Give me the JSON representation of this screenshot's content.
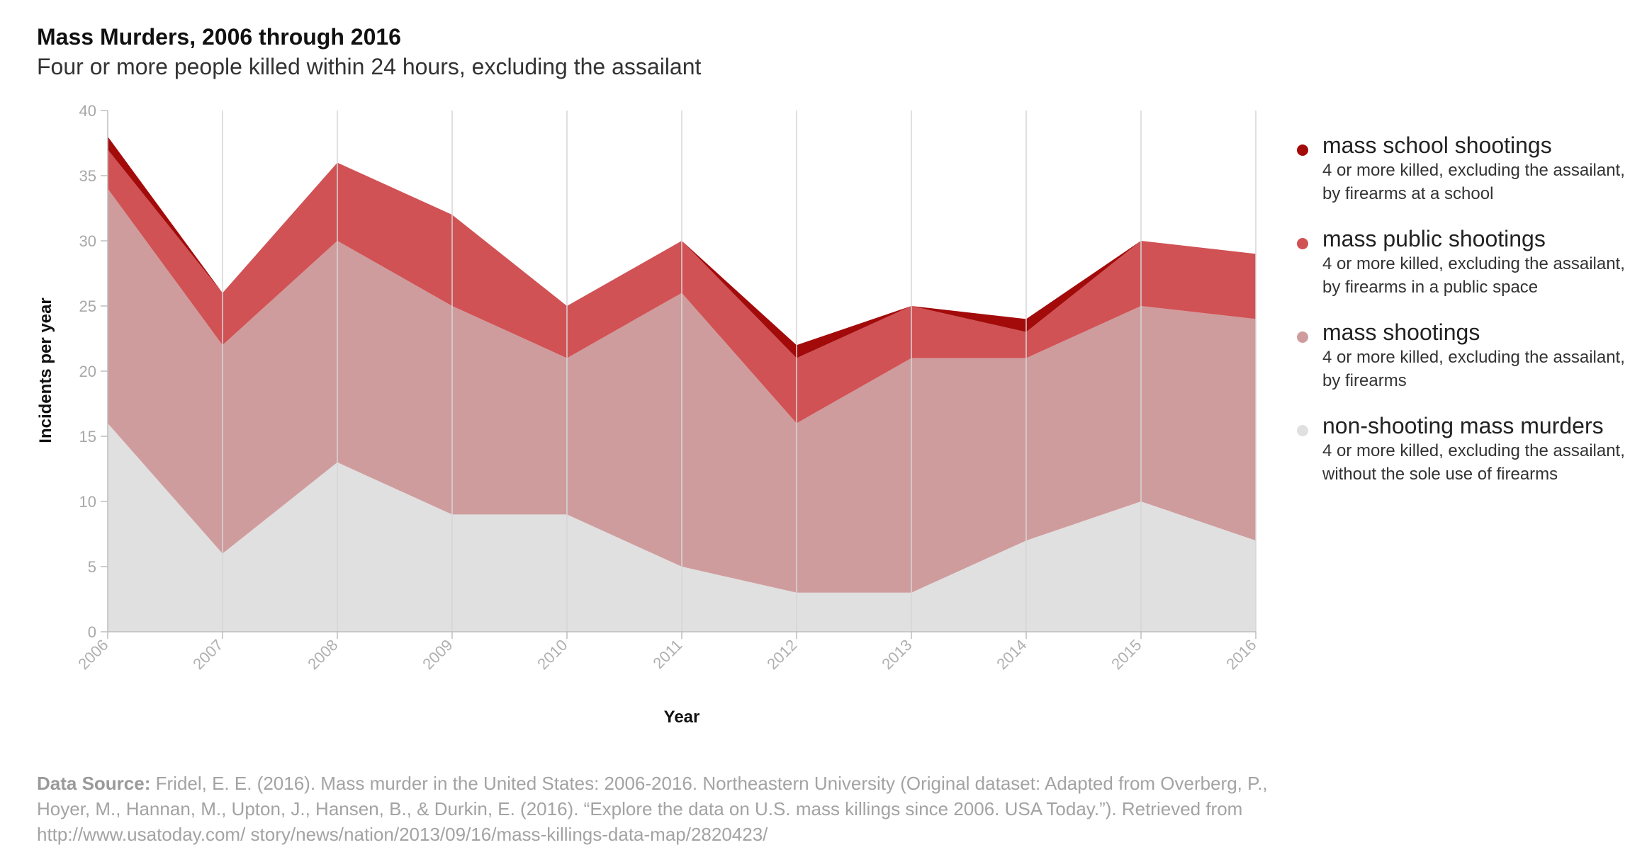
{
  "chart_data": {
    "type": "area",
    "stacked": true,
    "title": "Mass Murders, 2006 through 2016",
    "subtitle": "Four or more people killed within 24 hours, excluding the assailant",
    "xlabel": "Year",
    "ylabel": "Incidents per year",
    "ylim": [
      0,
      40
    ],
    "yticks": [
      0,
      5,
      10,
      15,
      20,
      25,
      30,
      35,
      40
    ],
    "categories": [
      "2006",
      "2007",
      "2008",
      "2009",
      "2010",
      "2011",
      "2012",
      "2013",
      "2014",
      "2015",
      "2016"
    ],
    "series": [
      {
        "name": "non-shooting mass murders",
        "description": "4 or more killed, excluding the assailant, without the sole use of firearms",
        "color": "#e0e0e0",
        "values": [
          16,
          6,
          13,
          9,
          9,
          5,
          3,
          3,
          7,
          10,
          7
        ]
      },
      {
        "name": "mass shootings",
        "description": "4 or more killed, excluding the assailant, by firearms",
        "color": "#cf9c9d",
        "values": [
          18,
          16,
          17,
          16,
          12,
          21,
          13,
          18,
          14,
          15,
          17
        ]
      },
      {
        "name": "mass public shootings",
        "description": "4 or more killed, excluding the assailant, by firearms in a public space",
        "color": "#d05255",
        "values": [
          3,
          4,
          6,
          7,
          4,
          4,
          5,
          4,
          2,
          5,
          5
        ]
      },
      {
        "name": "mass school shootings",
        "description": "4 or more killed, excluding the assailant, by firearms at a school",
        "color": "#a30b0b",
        "values": [
          1,
          0,
          0,
          0,
          0,
          0,
          1,
          0,
          1,
          0,
          0
        ]
      }
    ],
    "legend_order": [
      "mass school shootings",
      "mass public shootings",
      "mass shootings",
      "non-shooting mass murders"
    ],
    "legend_position": "right",
    "grid": "vertical"
  },
  "source": {
    "label": "Data Source:",
    "text": "Fridel, E. E. (2016). Mass murder in the United States: 2006-2016. Northeastern University (Original dataset: Adapted from Overberg, P., Hoyer, M., Hannan, M., Upton, J., Hansen, B., & Durkin, E. (2016). “Explore the data on U.S. mass killings since 2006. USA Today.”). Retrieved from http://www.usatoday.com/ story/news/nation/2013/09/16/mass-killings-data-map/2820423/"
  }
}
